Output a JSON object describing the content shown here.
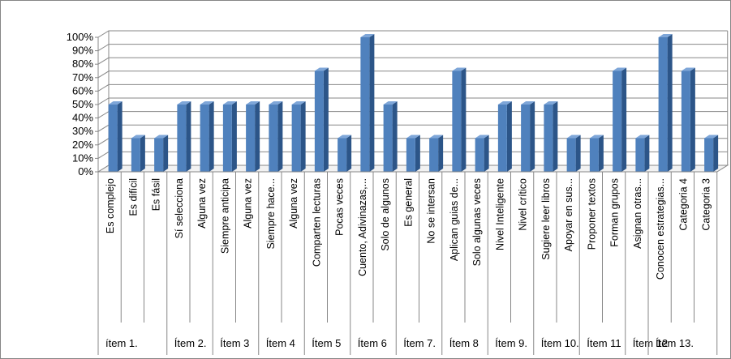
{
  "chart_data": {
    "type": "bar",
    "style": "3d-column",
    "title": "",
    "xlabel": "",
    "ylabel": "",
    "ylim": [
      0,
      1
    ],
    "yticks": [
      "0%",
      "10%",
      "20%",
      "30%",
      "40%",
      "50%",
      "60%",
      "70%",
      "80%",
      "90%",
      "100%"
    ],
    "grid": true,
    "legend": "none",
    "bar_color": "#4F81BD",
    "categories": [
      "Es complejo",
      "Es difícil",
      "Es fásil",
      "Sí selecciona",
      "Alguna vez",
      "Siempre anticipa",
      "Alguna vez",
      "Siempre hace...",
      "Alguna vez",
      "Comparten lecturas",
      "Pocas veces",
      "Cuento, Adivinazas,...",
      "Solo de algunos",
      "Es general",
      "No se intersan",
      "Aplican guias de...",
      "Solo algunas veces",
      "Nivel Inteligente",
      "Nivel crítico",
      "Sugiere leer libros",
      "Apoyar en sus...",
      "Proponer textos",
      "Forman grupos",
      "Asignan otras...",
      "Conocen estrategias...",
      "Categoria 4",
      "Categoria 3"
    ],
    "values": [
      0.5,
      0.25,
      0.25,
      0.5,
      0.5,
      0.5,
      0.5,
      0.5,
      0.5,
      0.75,
      0.25,
      1.0,
      0.5,
      0.25,
      0.25,
      0.75,
      0.25,
      0.5,
      0.5,
      0.5,
      0.25,
      0.25,
      0.75,
      0.25,
      1.0,
      0.75,
      0.25
    ],
    "groups": [
      {
        "label": "ítem 1.",
        "count": 3
      },
      {
        "label": "Ítem 2.",
        "count": 2
      },
      {
        "label": "Ítem 3",
        "count": 2
      },
      {
        "label": "Ítem 4",
        "count": 2
      },
      {
        "label": "Ítem 5",
        "count": 2
      },
      {
        "label": "Ítem 6",
        "count": 2
      },
      {
        "label": "Ítem 7.",
        "count": 2
      },
      {
        "label": "Ítem 8",
        "count": 2
      },
      {
        "label": "Ítem 9.",
        "count": 2
      },
      {
        "label": "Ítem 10.",
        "count": 2
      },
      {
        "label": "Ítem 11",
        "count": 2
      },
      {
        "label": "Ítem 12",
        "count": 1
      },
      {
        "label": "Ítem 13.",
        "count": 3
      }
    ]
  }
}
